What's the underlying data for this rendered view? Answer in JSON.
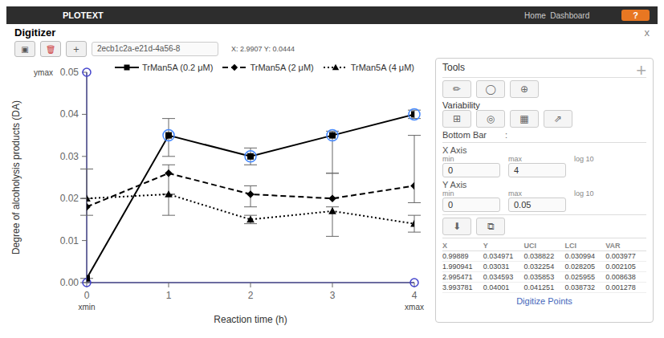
{
  "chart_data": {
    "type": "line",
    "title": "Digitizer",
    "x_label": "Reaction time (h)",
    "y_label": "Degree of alcoholysis products (DA)",
    "xlim": [
      0,
      4
    ],
    "ylim": [
      0,
      0.05
    ],
    "xticks": [
      0,
      1,
      2,
      3,
      4
    ],
    "yticks": [
      {
        "value": 0,
        "label": "0.00"
      },
      0.01,
      0.02,
      0.03,
      0.04,
      0.05
    ],
    "legend": "upper right",
    "grid": false,
    "series": [
      {
        "name": "TrMan5A (0.2 μM)",
        "color": "black",
        "marker": "square",
        "line_style": "solid",
        "x": [
          0,
          1,
          2,
          3,
          4
        ],
        "values": [
          0.001,
          0.035,
          0.03,
          0.035,
          0.04
        ],
        "error_upper": [
          0.0,
          0.004,
          0.002,
          0.001,
          0.001
        ],
        "error_lower": [
          0.001,
          0.005,
          0.002,
          0.009,
          0.001
        ]
      },
      {
        "name": "TrMan5A (2 μM)",
        "color": "black",
        "marker": "diamond",
        "line_style": "dashed",
        "x": [
          0,
          1,
          2,
          3,
          4
        ],
        "values": [
          0.018,
          0.026,
          0.021,
          0.02,
          0.023
        ],
        "error_upper": [
          0.009,
          0.002,
          0.002,
          0.006,
          0.012
        ],
        "error_lower": [
          0.002,
          0.01,
          0.003,
          0.0,
          0.004
        ]
      },
      {
        "name": "TrMan5A (4 μM)",
        "color": "black",
        "marker": "triangle",
        "line_style": "dotted",
        "x": [
          0,
          1,
          2,
          3,
          4
        ],
        "values": [
          0.02,
          0.021,
          0.015,
          0.017,
          0.014
        ],
        "error_upper": [
          0.0,
          0.0,
          0.001,
          0.001,
          0.002
        ],
        "error_lower": [
          0.0,
          0.0,
          0.001,
          0.006,
          0.002
        ]
      }
    ],
    "reference_lines": {
      "x": [
        0
      ],
      "y": [
        0
      ],
      "color": "#4444cc"
    },
    "reference_points": {
      "x": [
        0,
        4,
        0
      ],
      "values": [
        0,
        0,
        0.05
      ],
      "color": "#4444cc"
    },
    "selected_points": {
      "x": [
        1,
        2,
        3,
        4
      ],
      "values": [
        0.035,
        0.03,
        0.035,
        0.04
      ],
      "color": "#4488ff"
    },
    "annotations": [
      {
        "text": "xmin",
        "x": 0
      },
      {
        "text": "xmax",
        "x": 4
      },
      {
        "text": "ymax",
        "y": 0.05
      }
    ],
    "ui": {
      "nav_text": "PLOTEXT",
      "nav_links": "Home  Dashboard",
      "help": "?",
      "close": "x",
      "dialog_buttons": [
        "▣",
        "🗑",
        "+"
      ],
      "dialog_id": "2ecb1c2a-e21d-4a56-8",
      "coords_label": "X: 2.9907 Y: 0.0444",
      "tools_title": "Tools",
      "corner_icon": "+",
      "tool_icons": [
        "✏",
        "◯",
        "⊕"
      ],
      "variability_label": "Variability",
      "variability_icons": [
        "⊞",
        "◎",
        "▦",
        "⇗"
      ],
      "bottom_bar_label": "Bottom Bar",
      "bottom_bar_colon": ":",
      "xaxis_label": "X Axis",
      "yaxis_label": "Y Axis",
      "min_label": "min",
      "max_label": "max",
      "log_label": "log 10",
      "xaxis_min": "0",
      "xaxis_max": "4",
      "yaxis_min": "0",
      "yaxis_max": "0.05",
      "download_icons": [
        "⬇",
        "⧉"
      ],
      "digitize_points": "Digitize Points"
    },
    "table": {
      "headers": [
        "X",
        "Y",
        "UCI",
        "LCI",
        "VAR"
      ],
      "rows": [
        [
          0.99889,
          0.034971,
          0.038822,
          0.030994,
          0.003977
        ],
        [
          1.990941,
          0.03031,
          0.032254,
          0.028205,
          0.002105
        ],
        [
          2.995471,
          0.034593,
          0.035853,
          0.025955,
          0.008638
        ],
        [
          3.993781,
          0.04001,
          0.041251,
          0.038732,
          0.001278
        ]
      ]
    }
  }
}
